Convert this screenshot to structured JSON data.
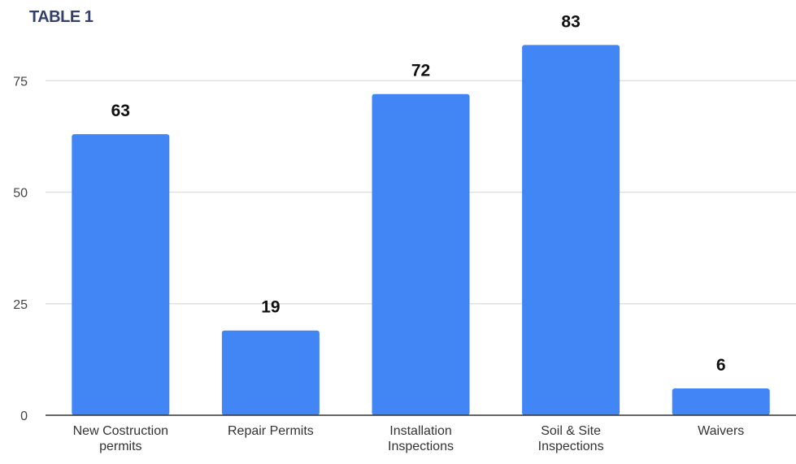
{
  "title": "TABLE 1",
  "colors": {
    "bar": "#4285f4",
    "grid": "#e0e0e0",
    "axis": "#333333"
  },
  "chart_data": {
    "type": "bar",
    "title": "TABLE 1",
    "categories": [
      [
        "New Costruction",
        "permits"
      ],
      [
        "Repair Permits"
      ],
      [
        "Installation",
        "Inspections"
      ],
      [
        "Soil & Site",
        "Inspections"
      ],
      [
        "Waivers"
      ]
    ],
    "values": [
      63,
      19,
      72,
      83,
      6
    ],
    "data_labels": [
      "63",
      "19",
      "72",
      "83",
      "6"
    ],
    "yticks": [
      0,
      25,
      50,
      75
    ],
    "ylim": [
      0,
      92
    ],
    "grid": true,
    "legend": "none"
  }
}
